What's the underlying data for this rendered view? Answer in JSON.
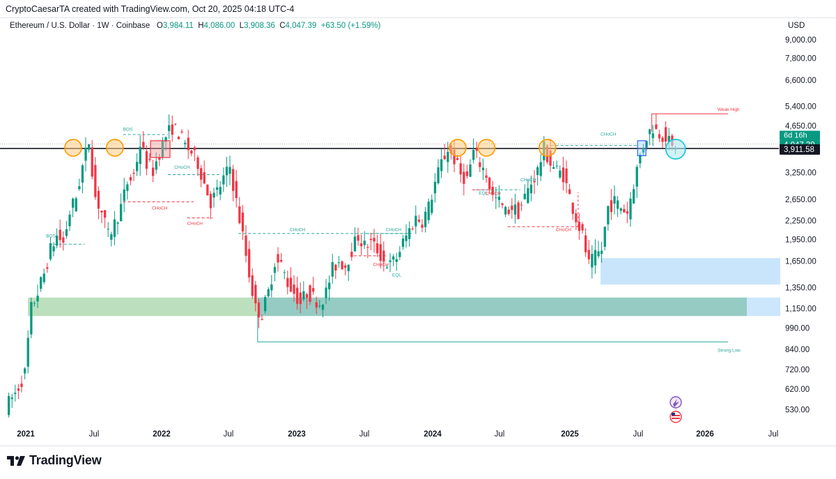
{
  "header": {
    "credit": "CryptoCaesarTA created with TradingView.com, Oct 20, 2025 04:18 UTC-4",
    "symbol": "Ethereum / U.S. Dollar · 1W · Coinbase",
    "open_label": "O",
    "open": "3,984.11",
    "high_label": "H",
    "high": "4,086.00",
    "low_label": "L",
    "low": "3,908.36",
    "close_label": "C",
    "close": "4,047.39",
    "change": "+63.50 (+1.59%)",
    "currency": "USD"
  },
  "footer": {
    "brand": "TradingView"
  },
  "chart_data": {
    "type": "candlestick",
    "scale": "log",
    "colors": {
      "up": "#089981",
      "down": "#f23645",
      "resistance": "#131722",
      "accent": "#26a69a"
    },
    "y_ticks": [
      "9,000.00",
      "7,800.00",
      "6,600.00",
      "5,400.00",
      "4,650.00",
      "3,250.00",
      "2,650.00",
      "2,250.00",
      "1,950.00",
      "1,650.00",
      "1,350.00",
      "1,150.00",
      "990.00",
      "840.00",
      "720.00",
      "620.00",
      "530.00"
    ],
    "x_ticks": [
      "2021",
      "Jul",
      "2022",
      "Jul",
      "2023",
      "Jul",
      "2024",
      "Jul",
      "2025",
      "Jul",
      "2026",
      "Jul"
    ],
    "price_tags": {
      "countdown": "6d 16h",
      "last": "4,047.39",
      "level": "3,911.58"
    },
    "resistance_level": 3911.58,
    "path": [
      [
        0,
        540
      ],
      [
        3,
        600
      ],
      [
        6,
        700
      ],
      [
        8,
        1150
      ],
      [
        10,
        1300
      ],
      [
        12,
        1500
      ],
      [
        14,
        1800
      ],
      [
        16,
        2000
      ],
      [
        18,
        1900
      ],
      [
        20,
        2400
      ],
      [
        22,
        2700
      ],
      [
        24,
        3400
      ],
      [
        26,
        4150
      ],
      [
        28,
        2700
      ],
      [
        30,
        2400
      ],
      [
        32,
        2000
      ],
      [
        34,
        2200
      ],
      [
        36,
        2500
      ],
      [
        38,
        3000
      ],
      [
        40,
        3200
      ],
      [
        42,
        4050
      ],
      [
        44,
        3500
      ],
      [
        46,
        3300
      ],
      [
        48,
        3800
      ],
      [
        50,
        4300
      ],
      [
        52,
        4600
      ],
      [
        54,
        4400
      ],
      [
        56,
        4000
      ],
      [
        58,
        3800
      ],
      [
        60,
        3500
      ],
      [
        62,
        3000
      ],
      [
        64,
        2600
      ],
      [
        66,
        2800
      ],
      [
        68,
        3100
      ],
      [
        70,
        3400
      ],
      [
        72,
        2600
      ],
      [
        74,
        2000
      ],
      [
        76,
        1500
      ],
      [
        78,
        1150
      ],
      [
        80,
        1100
      ],
      [
        82,
        1300
      ],
      [
        84,
        1650
      ],
      [
        86,
        1600
      ],
      [
        88,
        1400
      ],
      [
        90,
        1300
      ],
      [
        92,
        1200
      ],
      [
        94,
        1300
      ],
      [
        96,
        1250
      ],
      [
        98,
        1200
      ],
      [
        100,
        1300
      ],
      [
        102,
        1550
      ],
      [
        104,
        1650
      ],
      [
        106,
        1600
      ],
      [
        108,
        1800
      ],
      [
        110,
        2000
      ],
      [
        112,
        1850
      ],
      [
        114,
        1900
      ],
      [
        116,
        1800
      ],
      [
        118,
        1650
      ],
      [
        120,
        1600
      ],
      [
        122,
        1700
      ],
      [
        124,
        1900
      ],
      [
        126,
        2100
      ],
      [
        128,
        2300
      ],
      [
        130,
        2250
      ],
      [
        132,
        2500
      ],
      [
        134,
        3000
      ],
      [
        136,
        3500
      ],
      [
        138,
        3900
      ],
      [
        140,
        3600
      ],
      [
        142,
        3200
      ],
      [
        144,
        3100
      ],
      [
        146,
        3800
      ],
      [
        148,
        3500
      ],
      [
        150,
        3200
      ],
      [
        152,
        2700
      ],
      [
        154,
        2600
      ],
      [
        156,
        2400
      ],
      [
        158,
        2500
      ],
      [
        160,
        2400
      ],
      [
        162,
        2700
      ],
      [
        164,
        3000
      ],
      [
        166,
        3300
      ],
      [
        168,
        3900
      ],
      [
        170,
        3500
      ],
      [
        172,
        3300
      ],
      [
        174,
        3200
      ],
      [
        176,
        2700
      ],
      [
        178,
        2300
      ],
      [
        180,
        2000
      ],
      [
        182,
        1600
      ],
      [
        184,
        1700
      ],
      [
        186,
        1800
      ],
      [
        188,
        2500
      ],
      [
        190,
        2600
      ],
      [
        192,
        2500
      ],
      [
        194,
        2400
      ],
      [
        196,
        3000
      ],
      [
        198,
        3700
      ],
      [
        200,
        4300
      ],
      [
        202,
        4600
      ],
      [
        204,
        4400
      ],
      [
        206,
        4300
      ],
      [
        208,
        3900
      ],
      [
        209,
        4047
      ]
    ],
    "annotations": [
      {
        "label": "BOS",
        "color": "green"
      },
      {
        "label": "BOS",
        "color": "green"
      },
      {
        "label": "CHoCH",
        "color": "red"
      },
      {
        "label": "CHoCH",
        "color": "green"
      },
      {
        "label": "CHoCH",
        "color": "red"
      },
      {
        "label": "CHoCH",
        "color": "green"
      },
      {
        "label": "CHoCH",
        "color": "green"
      },
      {
        "label": "CHoCH",
        "color": "red"
      },
      {
        "label": "EQL",
        "color": "green"
      },
      {
        "label": "EQL",
        "color": "green"
      },
      {
        "label": "CHoCH",
        "color": "red"
      },
      {
        "label": "CHoCH",
        "color": "green"
      },
      {
        "label": "CHoCH",
        "color": "red"
      },
      {
        "label": "CHoCH",
        "color": "green"
      },
      {
        "label": "Weak High",
        "color": "red"
      },
      {
        "label": "Strong Low",
        "color": "green"
      }
    ]
  }
}
